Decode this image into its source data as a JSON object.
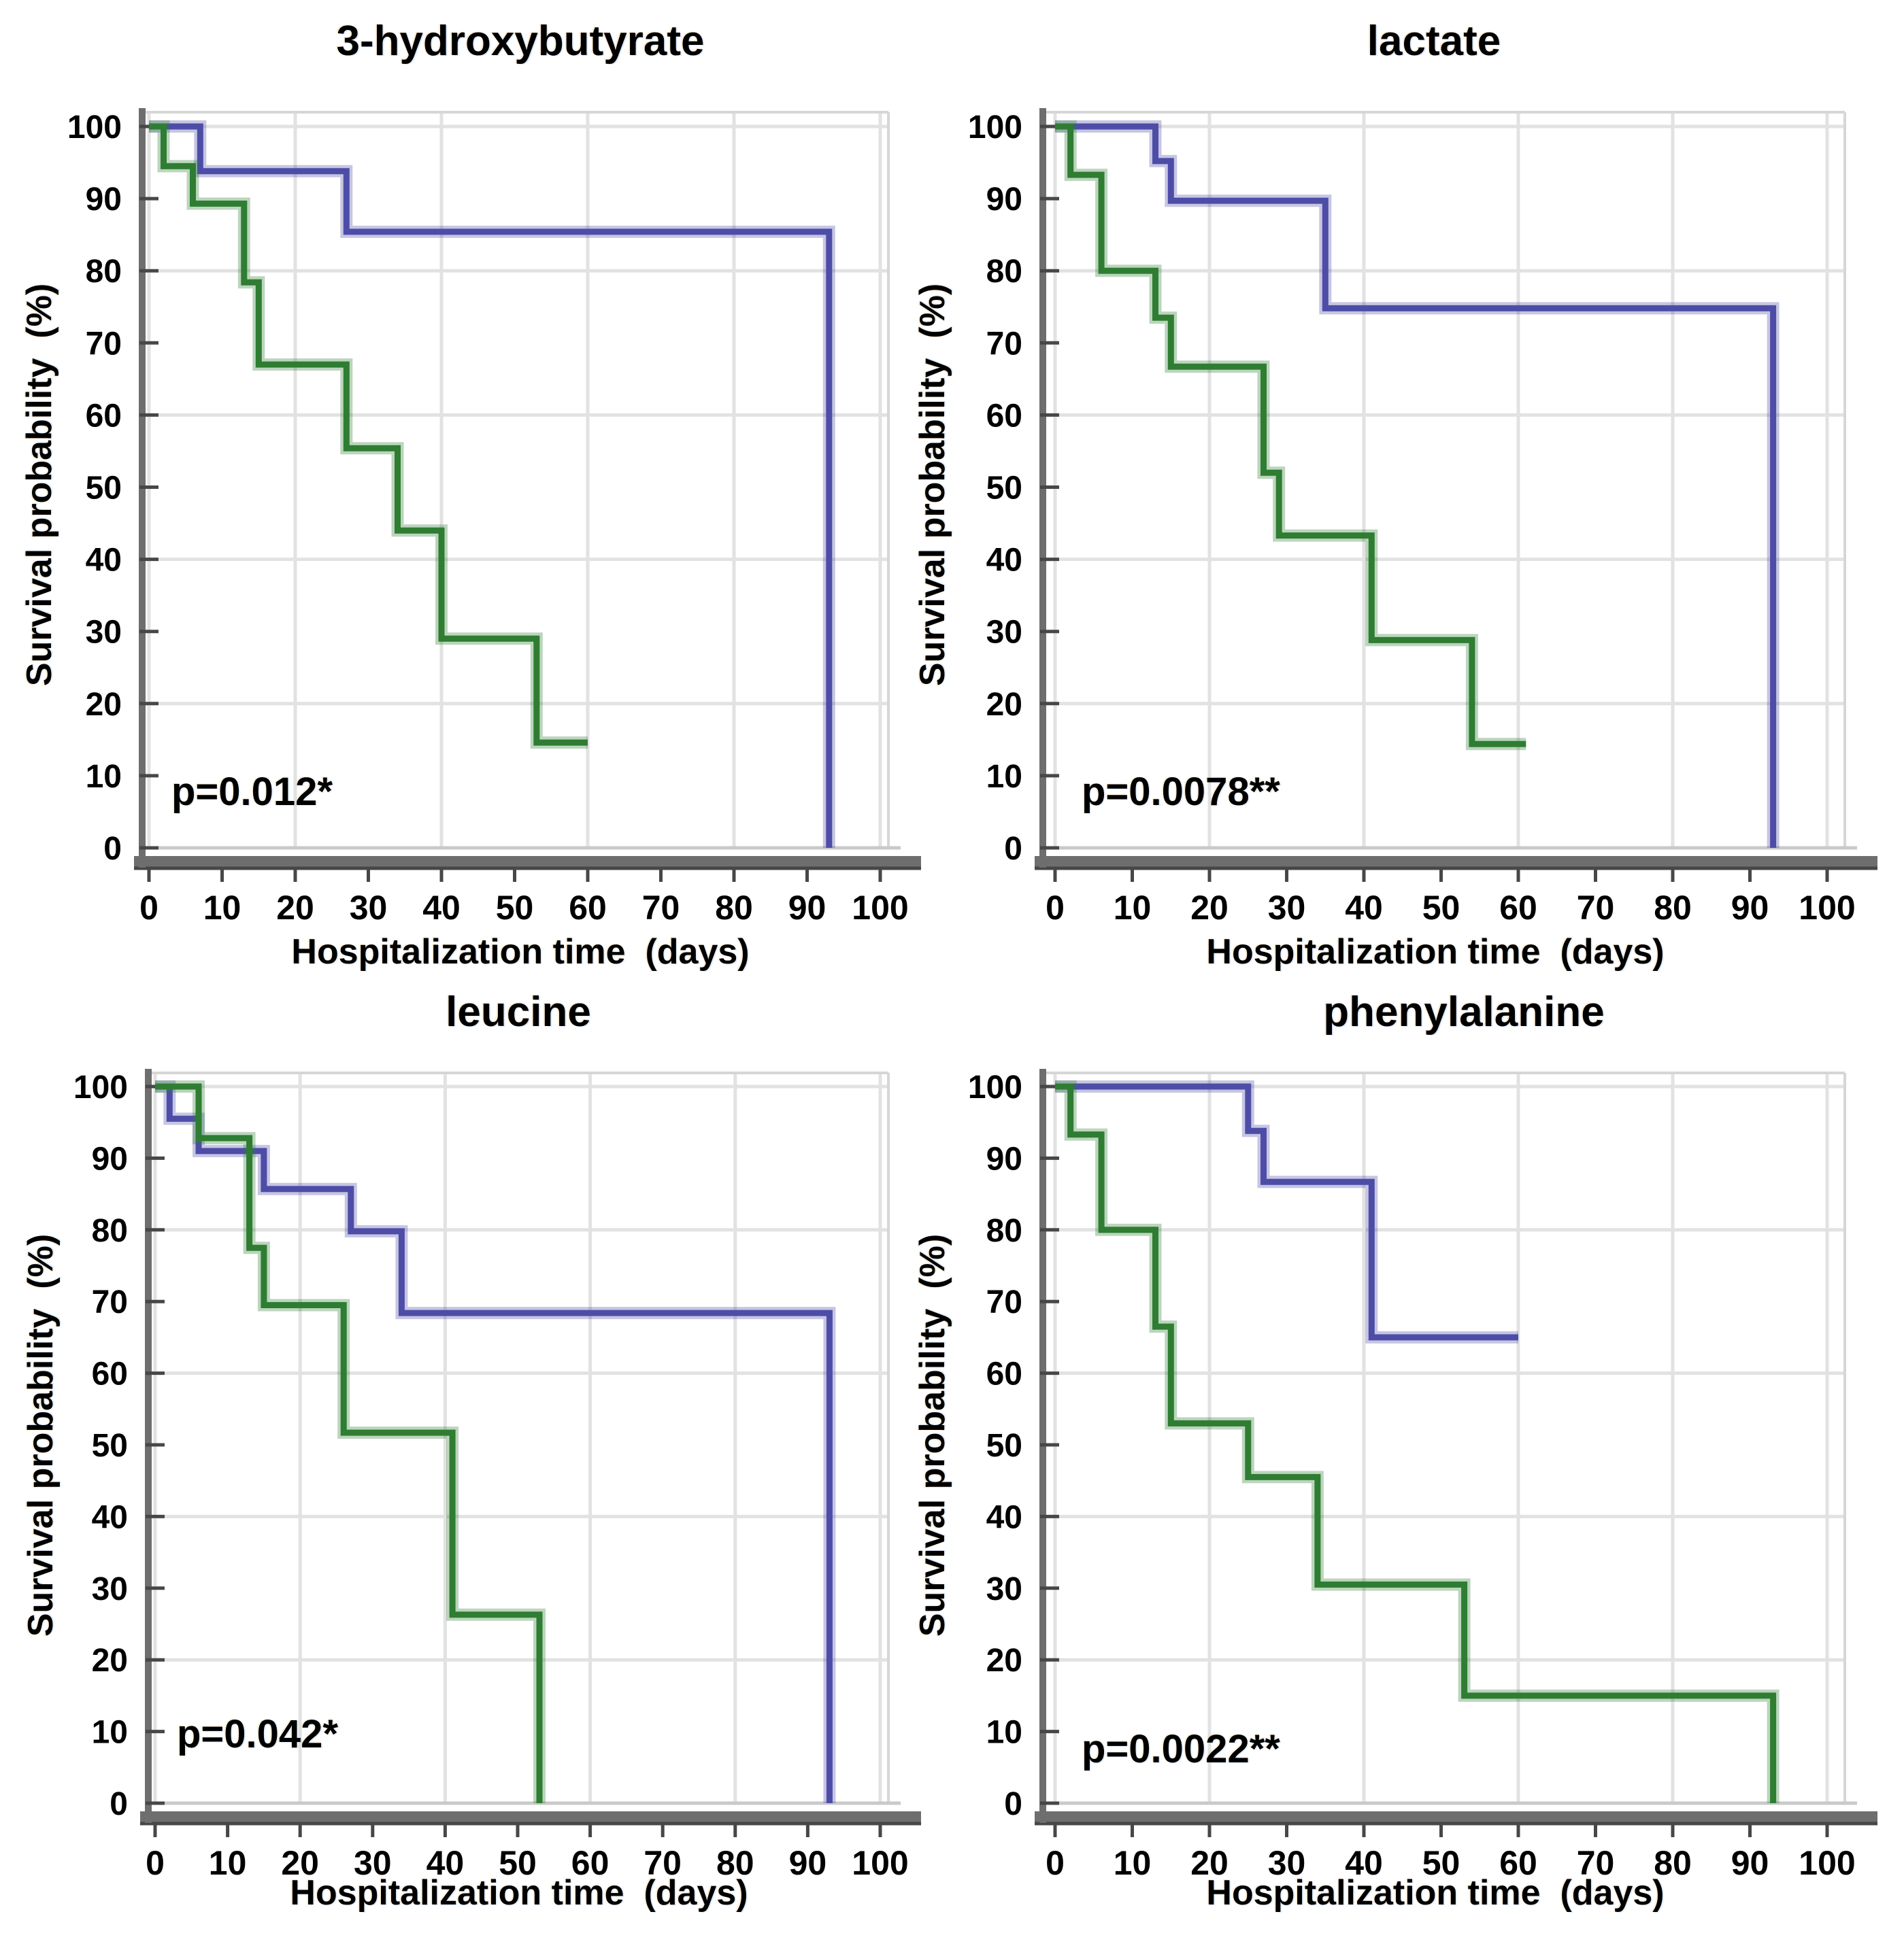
{
  "figure": {
    "background": "#ffffff",
    "y_axis_label": "Survival probability  (%)",
    "x_axis_label": "Hospitalization time  (days)",
    "x_ticks": [
      0,
      10,
      20,
      30,
      40,
      50,
      60,
      70,
      80,
      90,
      100
    ],
    "y_ticks": [
      0,
      10,
      20,
      30,
      40,
      50,
      60,
      70,
      80,
      90,
      100
    ],
    "grid_step": 20,
    "colors": {
      "high_group_line": "#4d4da8",
      "low_group_line": "#2e7d32",
      "gridline": "#e2e2e2",
      "zero_line": "#c9c9c9",
      "box_border": "#d6d6d6",
      "axis": "#6e6e6e",
      "axis_dark": "#474747",
      "text": "#000000"
    }
  },
  "chart_data": [
    {
      "type": "line",
      "km_variant": "step",
      "title": "3-hydroxybutyrate",
      "p_value_label": "p=0.012*",
      "xlabel": "Hospitalization time  (days)",
      "ylabel": "Survival probability  (%)",
      "xlim": [
        0,
        100
      ],
      "ylim": [
        0,
        100
      ],
      "grid_on": true,
      "legend": null,
      "series": [
        {
          "name": "blue-group",
          "color_key": "high_group_line",
          "points": [
            [
              0,
              100
            ],
            [
              7,
              100
            ],
            [
              7,
              93.8
            ],
            [
              27,
              93.8
            ],
            [
              27,
              85.4
            ],
            [
              93,
              85.4
            ],
            [
              93,
              0
            ]
          ]
        },
        {
          "name": "green-group",
          "color_key": "low_group_line",
          "points": [
            [
              0,
              100
            ],
            [
              2,
              100
            ],
            [
              2,
              94.5
            ],
            [
              6,
              94.5
            ],
            [
              6,
              89.3
            ],
            [
              13,
              89.3
            ],
            [
              13,
              78.4
            ],
            [
              15,
              78.4
            ],
            [
              15,
              67
            ],
            [
              27,
              67
            ],
            [
              27,
              55.4
            ],
            [
              34,
              55.4
            ],
            [
              34,
              44
            ],
            [
              40,
              44
            ],
            [
              40,
              29
            ],
            [
              53,
              29
            ],
            [
              53,
              14.6
            ],
            [
              60,
              14.6
            ]
          ]
        }
      ]
    },
    {
      "type": "line",
      "km_variant": "step",
      "title": "lactate",
      "p_value_label": "p=0.0078**",
      "xlabel": "Hospitalization time  (days)",
      "ylabel": "Survival probability  (%)",
      "xlim": [
        0,
        100
      ],
      "ylim": [
        0,
        100
      ],
      "grid_on": true,
      "legend": null,
      "series": [
        {
          "name": "blue-group",
          "color_key": "high_group_line",
          "points": [
            [
              0,
              100
            ],
            [
              13,
              100
            ],
            [
              13,
              95.2
            ],
            [
              15,
              95.2
            ],
            [
              15,
              89.7
            ],
            [
              35,
              89.7
            ],
            [
              35,
              74.8
            ],
            [
              93,
              74.8
            ],
            [
              93,
              0
            ]
          ]
        },
        {
          "name": "green-group",
          "color_key": "low_group_line",
          "points": [
            [
              0,
              100
            ],
            [
              2,
              100
            ],
            [
              2,
              93.3
            ],
            [
              6,
              93.3
            ],
            [
              6,
              80
            ],
            [
              13,
              80
            ],
            [
              13,
              73.5
            ],
            [
              15,
              73.5
            ],
            [
              15,
              66.7
            ],
            [
              27,
              66.7
            ],
            [
              27,
              52
            ],
            [
              29,
              52
            ],
            [
              29,
              43.3
            ],
            [
              41,
              43.3
            ],
            [
              41,
              28.8
            ],
            [
              54,
              28.8
            ],
            [
              54,
              14.4
            ],
            [
              61,
              14.4
            ]
          ]
        }
      ]
    },
    {
      "type": "line",
      "km_variant": "step",
      "title": "leucine",
      "p_value_label": "p=0.042*",
      "xlabel": "Hospitalization time  (days)",
      "ylabel": "Survival probability  (%)",
      "xlim": [
        0,
        100
      ],
      "ylim": [
        0,
        100
      ],
      "grid_on": true,
      "legend": null,
      "series": [
        {
          "name": "blue-group",
          "color_key": "high_group_line",
          "points": [
            [
              0,
              100
            ],
            [
              2,
              100
            ],
            [
              2,
              95.5
            ],
            [
              6,
              95.5
            ],
            [
              6,
              91
            ],
            [
              15,
              91
            ],
            [
              15,
              85.7
            ],
            [
              27,
              85.7
            ],
            [
              27,
              79.8
            ],
            [
              34,
              79.8
            ],
            [
              34,
              68.4
            ],
            [
              93,
              68.4
            ],
            [
              93,
              0
            ]
          ]
        },
        {
          "name": "green-group",
          "color_key": "low_group_line",
          "points": [
            [
              0,
              100
            ],
            [
              6,
              100
            ],
            [
              6,
              92.8
            ],
            [
              13,
              92.8
            ],
            [
              13,
              77.5
            ],
            [
              15,
              77.5
            ],
            [
              15,
              69.5
            ],
            [
              26,
              69.5
            ],
            [
              26,
              51.7
            ],
            [
              41,
              51.7
            ],
            [
              41,
              26.3
            ],
            [
              53,
              26.3
            ],
            [
              53,
              0
            ]
          ]
        }
      ]
    },
    {
      "type": "line",
      "km_variant": "step",
      "title": "phenylalanine",
      "p_value_label": "p=0.0022**",
      "xlabel": "Hospitalization time  (days)",
      "ylabel": "Survival probability  (%)",
      "xlim": [
        0,
        100
      ],
      "ylim": [
        0,
        100
      ],
      "grid_on": true,
      "legend": null,
      "series": [
        {
          "name": "blue-group",
          "color_key": "high_group_line",
          "points": [
            [
              0,
              100
            ],
            [
              25,
              100
            ],
            [
              25,
              93.8
            ],
            [
              27,
              93.8
            ],
            [
              27,
              86.7
            ],
            [
              41,
              86.7
            ],
            [
              41,
              65
            ],
            [
              60,
              65
            ]
          ]
        },
        {
          "name": "green-group",
          "color_key": "low_group_line",
          "points": [
            [
              0,
              100
            ],
            [
              2,
              100
            ],
            [
              2,
              93.3
            ],
            [
              6,
              93.3
            ],
            [
              6,
              80
            ],
            [
              13,
              80
            ],
            [
              13,
              66.5
            ],
            [
              15,
              66.5
            ],
            [
              15,
              53
            ],
            [
              25,
              53
            ],
            [
              25,
              45.5
            ],
            [
              34,
              45.5
            ],
            [
              34,
              30.5
            ],
            [
              53,
              30.5
            ],
            [
              53,
              15
            ],
            [
              93,
              15
            ],
            [
              93,
              0
            ]
          ]
        }
      ]
    }
  ]
}
